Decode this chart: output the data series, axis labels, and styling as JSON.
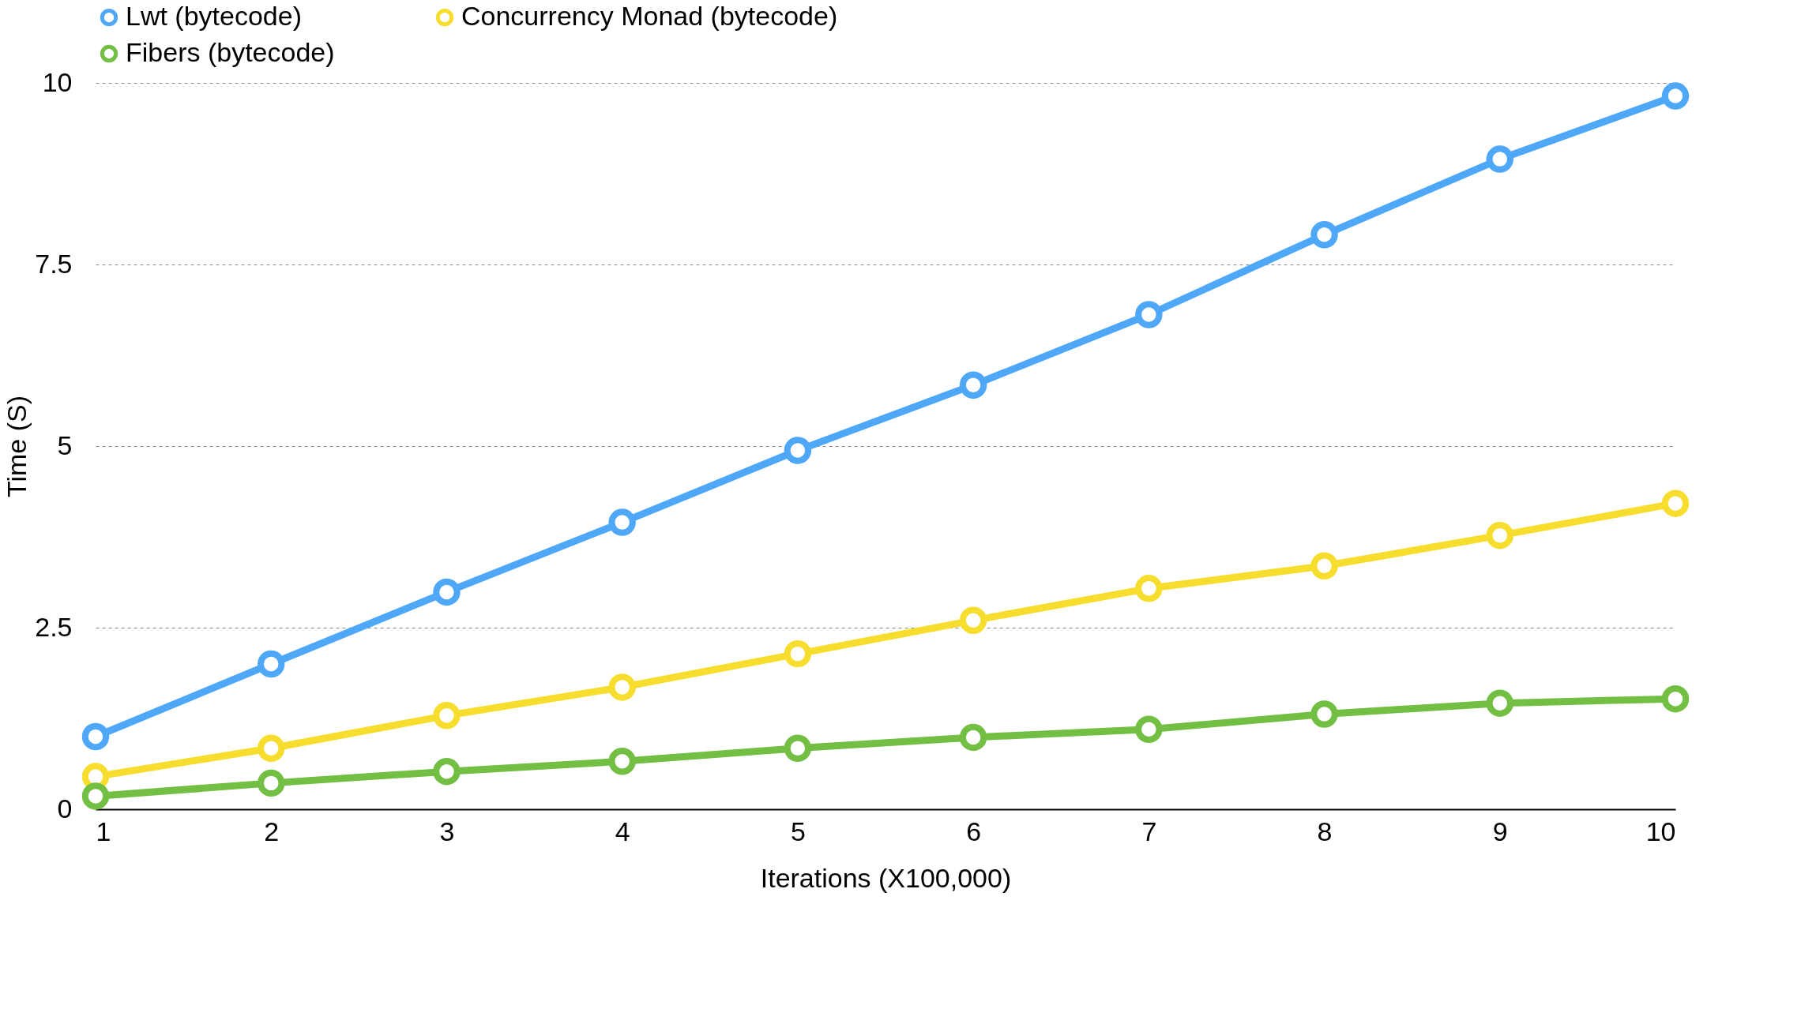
{
  "chart_data": {
    "type": "line",
    "xlabel": "Iterations (X100,000)",
    "ylabel": "Time (S)",
    "x": [
      1,
      2,
      3,
      4,
      5,
      6,
      7,
      8,
      9,
      10
    ],
    "series": [
      {
        "name": "Lwt (bytecode)",
        "color": "#4fa8f7",
        "values": [
          1.0,
          2.0,
          2.99,
          3.95,
          4.94,
          5.84,
          6.81,
          7.91,
          8.95,
          9.82
        ]
      },
      {
        "name": "Concurrency Monad (bytecode)",
        "color": "#f7de2e",
        "values": [
          0.45,
          0.84,
          1.29,
          1.68,
          2.14,
          2.6,
          3.04,
          3.35,
          3.77,
          4.21
        ]
      },
      {
        "name": "Fibers (bytecode)",
        "color": "#72bf44",
        "values": [
          0.18,
          0.36,
          0.52,
          0.66,
          0.84,
          0.99,
          1.1,
          1.31,
          1.46,
          1.52
        ]
      }
    ],
    "xlim": [
      1,
      10
    ],
    "xticks": [
      1,
      2,
      3,
      4,
      5,
      6,
      7,
      8,
      9,
      10
    ],
    "ylim": [
      0,
      10
    ],
    "yticks": [
      0,
      2.5,
      5,
      7.5,
      10
    ],
    "grid": "y",
    "legend": "top",
    "marker": "circle",
    "line_style": "solid"
  }
}
